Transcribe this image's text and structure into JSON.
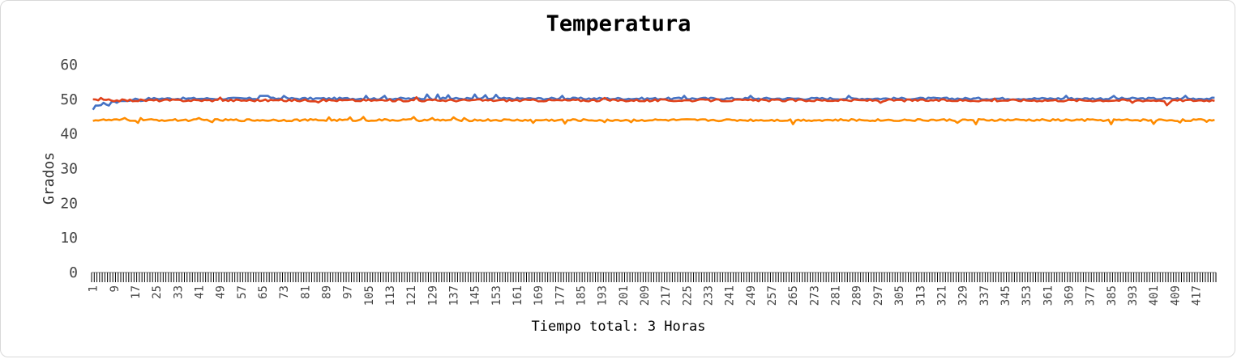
{
  "chart_data": {
    "type": "line",
    "title": "Temperatura",
    "xlabel": "Tiempo total: 3 Horas",
    "ylabel": "Grados",
    "ylim": [
      0,
      60
    ],
    "yticks": [
      0,
      10,
      20,
      30,
      40,
      50,
      60
    ],
    "x_count": 424,
    "x_label_every": 8,
    "grid": false,
    "legend": "none",
    "series": [
      {
        "color": "#4472C4",
        "base": 50.2,
        "start_values": [
          47.0,
          48.2,
          48.2,
          48.3,
          49.0,
          48.5,
          48.2,
          49.2,
          49.4,
          49.0,
          49.5,
          49.5,
          49.5,
          49.5,
          49.6,
          49.8,
          50.2,
          50.0,
          49.5,
          49.6,
          49.9
        ],
        "spikes": [
          [
            63,
            51.0
          ],
          [
            64,
            51.0
          ],
          [
            65,
            51.0
          ],
          [
            66,
            51.0
          ],
          [
            72,
            51.0
          ],
          [
            103,
            51.0
          ],
          [
            110,
            51.0
          ],
          [
            126,
            51.4
          ],
          [
            130,
            51.4
          ],
          [
            134,
            51.2
          ],
          [
            144,
            51.4
          ],
          [
            148,
            51.2
          ],
          [
            152,
            51.3
          ],
          [
            177,
            51.0
          ],
          [
            223,
            51.0
          ],
          [
            248,
            51.0
          ],
          [
            285,
            51.0
          ],
          [
            367,
            51.0
          ],
          [
            385,
            51.0
          ],
          [
            412,
            51.0
          ]
        ]
      },
      {
        "color": "#FF8C00",
        "base": 44.0,
        "spikes": [
          [
            12,
            44.6
          ],
          [
            17,
            43.2
          ],
          [
            18,
            44.6
          ],
          [
            40,
            44.6
          ],
          [
            45,
            43.4
          ],
          [
            89,
            44.8
          ],
          [
            97,
            44.8
          ],
          [
            102,
            44.9
          ],
          [
            121,
            44.9
          ],
          [
            128,
            44.6
          ],
          [
            136,
            44.8
          ],
          [
            140,
            44.6
          ],
          [
            166,
            43.2
          ],
          [
            178,
            43.0
          ],
          [
            193,
            43.4
          ],
          [
            203,
            43.4
          ],
          [
            264,
            42.8
          ],
          [
            326,
            43.2
          ],
          [
            333,
            42.8
          ],
          [
            384,
            42.8
          ],
          [
            400,
            42.9
          ],
          [
            410,
            43.3
          ],
          [
            420,
            43.5
          ]
        ]
      },
      {
        "color": "#E0421B",
        "base": 49.7,
        "spikes": [
          [
            0,
            50.0
          ],
          [
            3,
            50.4
          ],
          [
            48,
            50.5
          ],
          [
            85,
            49.1
          ],
          [
            100,
            49.5
          ],
          [
            122,
            50.6
          ],
          [
            146,
            50.0
          ],
          [
            193,
            50.4
          ],
          [
            210,
            49.4
          ],
          [
            235,
            50.0
          ],
          [
            297,
            49.0
          ],
          [
            340,
            50.2
          ],
          [
            392,
            49.0
          ],
          [
            405,
            48.3
          ],
          [
            406,
            49.0
          ],
          [
            408,
            49.8
          ]
        ]
      }
    ]
  }
}
